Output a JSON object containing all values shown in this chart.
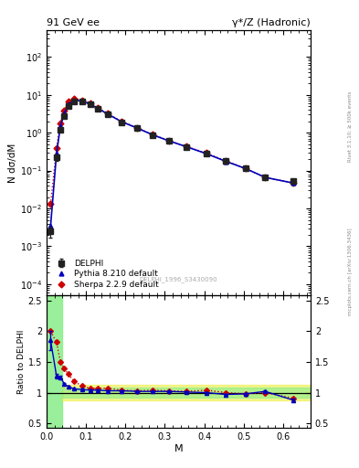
{
  "title_left": "91 GeV ee",
  "title_right": "γ*/Z (Hadronic)",
  "ylabel_main": "N dσ/dM",
  "ylabel_ratio": "Ratio to DELPHI",
  "xlabel": "M",
  "watermark": "DELPHI_1996_S3430090",
  "right_label_top": "Rivet 3.1.10; ≥ 500k events",
  "right_label_bot": "mcplots.cern.ch [arXiv:1306.3436]",
  "delphi_x": [
    0.01,
    0.025,
    0.035,
    0.045,
    0.055,
    0.07,
    0.09,
    0.11,
    0.13,
    0.155,
    0.19,
    0.23,
    0.27,
    0.31,
    0.355,
    0.405,
    0.455,
    0.505,
    0.555,
    0.625
  ],
  "delphi_y": [
    0.0025,
    0.22,
    1.2,
    2.8,
    5.0,
    6.8,
    6.5,
    5.5,
    4.2,
    3.0,
    1.9,
    1.3,
    0.85,
    0.6,
    0.42,
    0.28,
    0.18,
    0.115,
    0.065,
    0.053
  ],
  "delphi_yerr": [
    0.0008,
    0.04,
    0.15,
    0.25,
    0.35,
    0.35,
    0.3,
    0.25,
    0.18,
    0.12,
    0.08,
    0.05,
    0.035,
    0.025,
    0.018,
    0.012,
    0.008,
    0.006,
    0.004,
    0.005
  ],
  "pythia_x": [
    0.01,
    0.025,
    0.035,
    0.045,
    0.055,
    0.07,
    0.09,
    0.11,
    0.13,
    0.155,
    0.19,
    0.23,
    0.27,
    0.31,
    0.355,
    0.405,
    0.455,
    0.505,
    0.555,
    0.625
  ],
  "pythia_y": [
    0.0035,
    0.28,
    1.5,
    3.2,
    5.5,
    7.2,
    6.8,
    5.7,
    4.35,
    3.1,
    1.95,
    1.32,
    0.87,
    0.61,
    0.425,
    0.28,
    0.175,
    0.113,
    0.066,
    0.047
  ],
  "sherpa_x": [
    0.01,
    0.025,
    0.035,
    0.045,
    0.055,
    0.07,
    0.09,
    0.11,
    0.13,
    0.155,
    0.19,
    0.23,
    0.27,
    0.31,
    0.355,
    0.405,
    0.455,
    0.505,
    0.555,
    0.625
  ],
  "sherpa_y": [
    0.013,
    0.4,
    1.8,
    3.9,
    6.5,
    8.0,
    7.2,
    5.9,
    4.5,
    3.2,
    1.98,
    1.34,
    0.88,
    0.62,
    0.43,
    0.29,
    0.18,
    0.113,
    0.065,
    0.048
  ],
  "ratio_pythia_x": [
    0.01,
    0.025,
    0.035,
    0.045,
    0.055,
    0.07,
    0.09,
    0.11,
    0.13,
    0.155,
    0.19,
    0.23,
    0.27,
    0.31,
    0.355,
    0.405,
    0.455,
    0.505,
    0.555,
    0.625
  ],
  "ratio_pythia_y": [
    1.85,
    1.27,
    1.25,
    1.14,
    1.1,
    1.06,
    1.05,
    1.04,
    1.04,
    1.03,
    1.03,
    1.02,
    1.02,
    1.02,
    1.01,
    1.0,
    0.97,
    0.98,
    1.02,
    0.88
  ],
  "ratio_pythia_yerr": [
    0.15,
    0.04,
    0.025,
    0.02,
    0.015,
    0.012,
    0.01,
    0.01,
    0.01,
    0.01,
    0.01,
    0.01,
    0.008,
    0.008,
    0.008,
    0.008,
    0.008,
    0.01,
    0.015,
    0.02
  ],
  "ratio_sherpa_x": [
    0.01,
    0.025,
    0.035,
    0.045,
    0.055,
    0.07,
    0.09,
    0.11,
    0.13,
    0.155,
    0.19,
    0.23,
    0.27,
    0.31,
    0.355,
    0.405,
    0.455,
    0.505,
    0.555,
    0.625
  ],
  "ratio_sherpa_y": [
    2.0,
    1.82,
    1.5,
    1.39,
    1.3,
    1.18,
    1.11,
    1.07,
    1.07,
    1.07,
    1.04,
    1.03,
    1.04,
    1.03,
    1.02,
    1.04,
    1.0,
    0.98,
    1.0,
    0.91
  ],
  "delphi_color": "#222222",
  "pythia_color": "#0000bb",
  "sherpa_color": "#cc0000",
  "green_color": "#88ee88",
  "yellow_color": "#eeee44",
  "ylim_main": [
    5e-05,
    500
  ],
  "ylim_ratio": [
    0.42,
    2.58
  ],
  "xlim": [
    0.0,
    0.67
  ],
  "ratio_yticks": [
    0.5,
    1.0,
    1.5,
    2.0,
    2.5
  ],
  "ratio_yticklabels": [
    "0.5",
    "1",
    "1.5",
    "2",
    "2.5"
  ]
}
